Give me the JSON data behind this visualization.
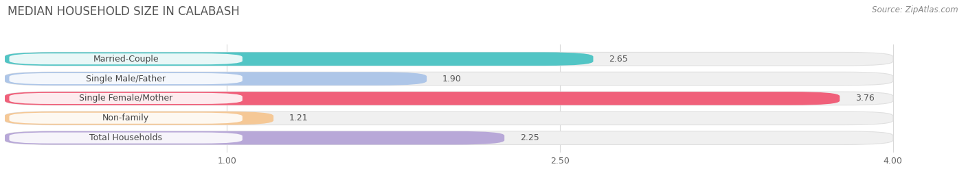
{
  "title": "MEDIAN HOUSEHOLD SIZE IN CALABASH",
  "source": "Source: ZipAtlas.com",
  "categories": [
    "Married-Couple",
    "Single Male/Father",
    "Single Female/Mother",
    "Non-family",
    "Total Households"
  ],
  "values": [
    2.65,
    1.9,
    3.76,
    1.21,
    2.25
  ],
  "bar_colors": [
    "#52c5c5",
    "#aec6e8",
    "#f0607a",
    "#f5c896",
    "#b8a8d8"
  ],
  "background_color": "#ffffff",
  "row_bg_color": "#f0f0f0",
  "xlim": [
    0,
    4.22
  ],
  "xmin": 0,
  "xticks": [
    1.0,
    2.5,
    4.0
  ],
  "title_fontsize": 12,
  "label_fontsize": 9,
  "value_fontsize": 9,
  "source_fontsize": 8.5
}
